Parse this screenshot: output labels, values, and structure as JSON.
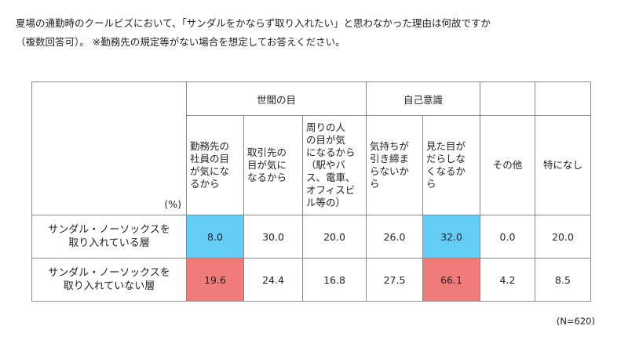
{
  "question": {
    "line1": "夏場の通勤時のクールビズにおいて、「サンダルをかならず取り入れたい」と思わなかった理由は何故ですか",
    "line2": "（複数回答可）。 ※勤務先の規定等がない場合を想定してお答えください。"
  },
  "table": {
    "unit_label": "(%)",
    "groups": [
      {
        "label": "世間の目",
        "span": 3
      },
      {
        "label": "自己意識",
        "span": 2
      },
      {
        "label": "",
        "span": 1
      },
      {
        "label": "",
        "span": 1
      }
    ],
    "columns": [
      {
        "lines": [
          "勤務先の",
          "社員の目",
          "が気にな",
          "るから"
        ]
      },
      {
        "lines": [
          "取引先の",
          "目が気に",
          "なるから"
        ]
      },
      {
        "lines": [
          "周りの人",
          "の目が気",
          "になるから",
          "（駅やバ",
          "ス、電車、",
          "オフィスビ",
          "ル等の）"
        ]
      },
      {
        "lines": [
          "気持ちが",
          "引き締ま",
          "らないか",
          "ら"
        ]
      },
      {
        "lines": [
          "見た目が",
          "だらしな",
          "くなるか",
          "ら"
        ]
      },
      {
        "lines": [
          "その他"
        ],
        "center": true
      },
      {
        "lines": [
          "特になし"
        ],
        "center": true
      }
    ],
    "rows": [
      {
        "label_lines": [
          "サンダル・ノーソックスを",
          "取り入れている層"
        ],
        "highlight": "blue"
      },
      {
        "label_lines": [
          "サンダル・ノーソックスを",
          "取り入れていない層"
        ],
        "highlight": "red"
      }
    ],
    "note": "(N=620)"
  },
  "chart_data": {
    "type": "table",
    "title": "夏場の通勤時のクールビズにおいて、「サンダルをかならず取り入れたい」と思わなかった理由は何故ですか（複数回答可）。 ※勤務先の規定等がない場合を想定してお答えください。",
    "unit": "(%)",
    "groups": [
      "世間の目",
      "自己意識"
    ],
    "categories": [
      "勤務先の社員の目が気になるから",
      "取引先の目が気になるから",
      "周りの人の目が気になるから（駅やバス、電車、オフィスビル等の）",
      "気持ちが引き締まらないから",
      "見た目がだらしなくなるから",
      "その他",
      "特になし"
    ],
    "series": [
      {
        "name": "サンダル・ノーソックスを取り入れている層",
        "values": [
          "8.0",
          "30.0",
          "20.0",
          "26.0",
          "32.0",
          "0.0",
          "20.0"
        ],
        "highlighted": [
          0,
          4
        ],
        "highlight_color": "#63cdf7"
      },
      {
        "name": "サンダル・ノーソックスを取り入れていない層",
        "values": [
          "19.6",
          "24.4",
          "16.8",
          "27.5",
          "66.1",
          "4.2",
          "8.5"
        ],
        "highlighted": [
          0,
          4
        ],
        "highlight_color": "#f17b79"
      }
    ],
    "n": "(N=620)"
  }
}
